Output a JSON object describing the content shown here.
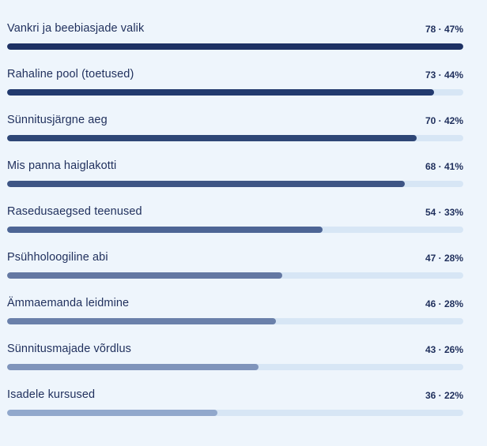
{
  "chart_data": {
    "type": "bar",
    "orientation": "horizontal",
    "max_value": 78,
    "items": [
      {
        "label": "Vankri ja beebiasjade valik",
        "value": 78,
        "percent": 47,
        "display": "78 · 47%",
        "color": "#1e3264"
      },
      {
        "label": "Rahaline pool (toetused)",
        "value": 73,
        "percent": 44,
        "display": "73 · 44%",
        "color": "#223a6e"
      },
      {
        "label": "Sünnitusjärgne aeg",
        "value": 70,
        "percent": 42,
        "display": "70 · 42%",
        "color": "#2e4676"
      },
      {
        "label": "Mis panna haiglakotti",
        "value": 68,
        "percent": 41,
        "display": "68 · 41%",
        "color": "#3e5585"
      },
      {
        "label": "Rasedusaegsed teenused",
        "value": 54,
        "percent": 33,
        "display": "54 · 33%",
        "color": "#4d6595"
      },
      {
        "label": "Psühholoogiline abi",
        "value": 47,
        "percent": 28,
        "display": "47 · 28%",
        "color": "#6478a2"
      },
      {
        "label": "Ämmaemanda leidmine",
        "value": 46,
        "percent": 28,
        "display": "46 · 28%",
        "color": "#6a80aa"
      },
      {
        "label": "Sünnitusmajade võrdlus",
        "value": 43,
        "percent": 26,
        "display": "43 · 26%",
        "color": "#7f94bb"
      },
      {
        "label": "Isadele kursused",
        "value": 36,
        "percent": 22,
        "display": "36 · 22%",
        "color": "#91a8cc"
      }
    ]
  }
}
